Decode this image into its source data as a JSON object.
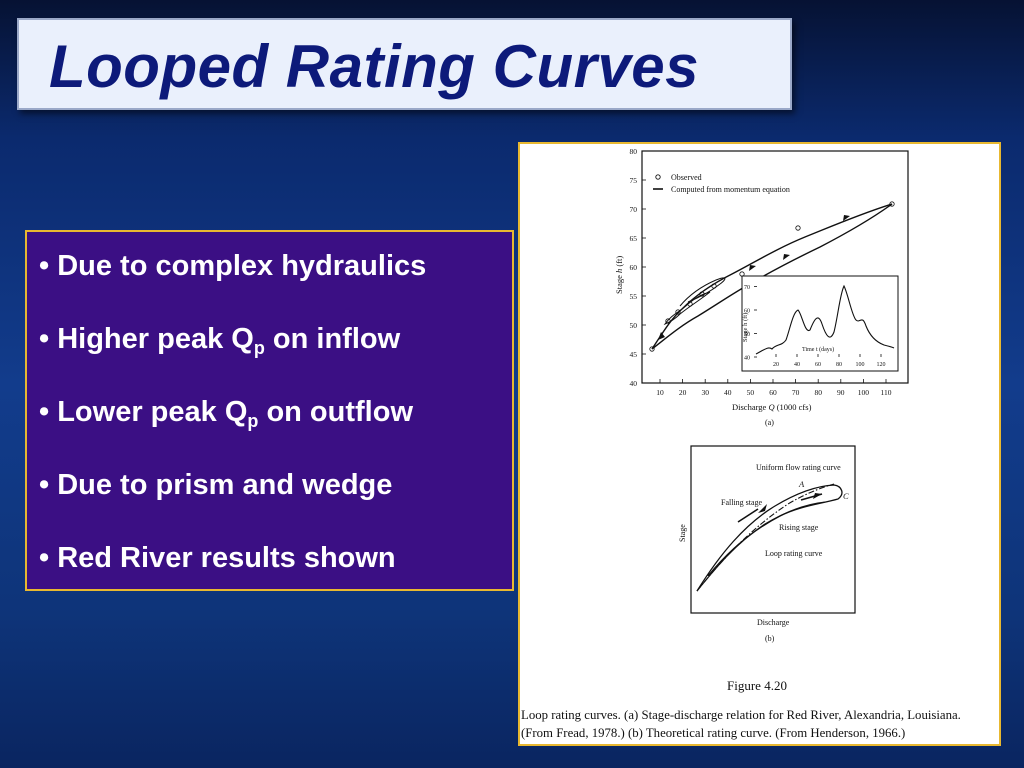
{
  "slide": {
    "title": "Looped Rating Curves",
    "bullets": [
      {
        "pre": "Due to complex hydraulics",
        "sub": "",
        "post": ""
      },
      {
        "pre": "Higher peak Q",
        "sub": "p",
        "post": " on inflow"
      },
      {
        "pre": "Lower peak Q",
        "sub": "p",
        "post": " on outflow"
      },
      {
        "pre": "Due to prism and wedge",
        "sub": "",
        "post": ""
      },
      {
        "pre": "Red River results shown",
        "sub": "",
        "post": ""
      }
    ],
    "bullet_glyph": "•"
  },
  "figure": {
    "panel_a": {
      "legend_observed": "Observed",
      "legend_computed": "Computed from momentum equation",
      "ylabel_prefix": "Stage ",
      "ylabel_var": "h",
      "ylabel_unit": " (ft)",
      "xlabel_prefix": "Discharge ",
      "xlabel_var": "Q",
      "xlabel_unit": " (1000 cfs)",
      "sublabel": "(a)",
      "x_ticks": [
        "10",
        "20",
        "30",
        "40",
        "50",
        "60",
        "70",
        "80",
        "90",
        "100",
        "110"
      ],
      "y_ticks": [
        "40",
        "45",
        "50",
        "55",
        "60",
        "65",
        "70",
        "75",
        "80"
      ],
      "inset": {
        "ylabel": "Stage h (ft)",
        "xlabel": "Time t (days)",
        "x_ticks": [
          "20",
          "40",
          "60",
          "80",
          "100",
          "120"
        ],
        "y_ticks": [
          "40",
          "50",
          "60",
          "70"
        ]
      }
    },
    "panel_b": {
      "uniform_label": "Uniform flow rating curve",
      "falling_label": "Falling stage",
      "rising_label": "Rising stage",
      "loop_label": "Loop rating curve",
      "point_a": "A",
      "point_c": "C",
      "ylabel": "Stage",
      "xlabel": "Discharge",
      "sublabel": "(b)"
    },
    "figure_number": "Figure 4.20",
    "caption_line1": "Loop rating curves. (a) Stage-discharge relation for Red River, Alexandria, Louisiana.",
    "caption_line2": "(From Fread, 1978.) (b) Theoretical rating curve. (From Henderson, 1966.)"
  }
}
